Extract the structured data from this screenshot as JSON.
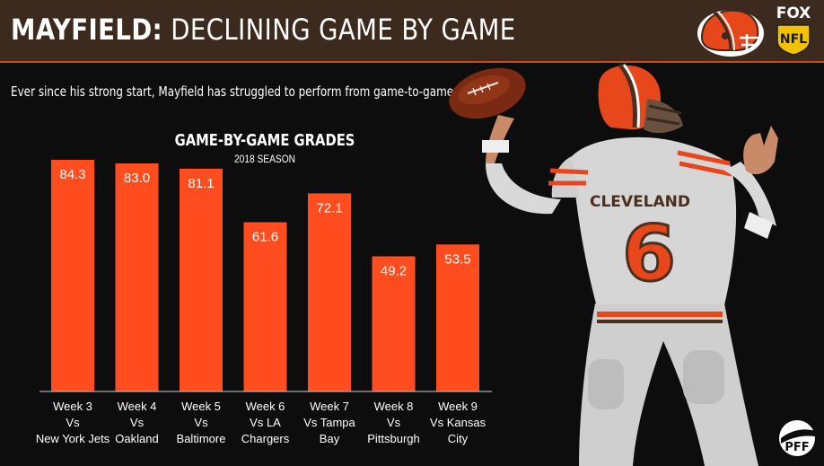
{
  "header": {
    "title_bold": "MAYFIELD:",
    "title_rest": "DECLINING GAME BY GAME",
    "logo_fox": "FOX",
    "logo_nfl": "NFL"
  },
  "subtitle": "Ever since his strong start, Mayfield has struggled to perform from game-to-game.",
  "player": {
    "jersey_text": "CLEVELAND",
    "jersey_number": "6"
  },
  "watermark": "PFF",
  "colors": {
    "bar": "#ff4d1f",
    "header_bg": "#3b2a1d",
    "accent": "#c84a1e",
    "background": "#0d0d0d"
  },
  "chart_data": {
    "type": "bar",
    "title": "GAME-BY-GAME GRADES",
    "subtitle": "2018 SEASON",
    "categories": [
      [
        "Week 3",
        "Vs",
        "New York Jets"
      ],
      [
        "Week 4",
        "Vs",
        "Oakland"
      ],
      [
        "Week 5",
        "Vs",
        "Baltimore"
      ],
      [
        "Week 6",
        "Vs LA",
        "Chargers"
      ],
      [
        "Week 7",
        "Vs Tampa",
        "Bay"
      ],
      [
        "Week 8",
        "Vs",
        "Pittsburgh"
      ],
      [
        "Week 9",
        "Vs Kansas",
        "City"
      ]
    ],
    "values": [
      84.3,
      83.0,
      81.1,
      61.6,
      72.1,
      49.2,
      53.5
    ],
    "value_labels": [
      "84.3",
      "83.0",
      "81.1",
      "61.6",
      "72.1",
      "49.2",
      "53.5"
    ],
    "ylim": [
      0,
      100
    ],
    "grid": false,
    "legend": "none"
  }
}
